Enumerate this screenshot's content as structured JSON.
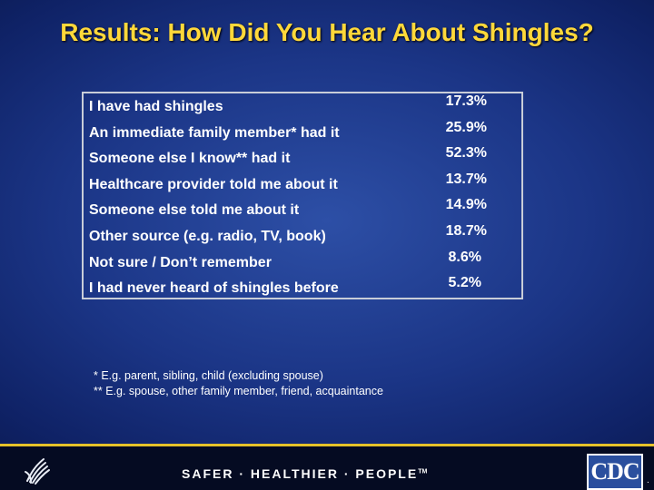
{
  "title": "Results: How Did You Hear About Shingles?",
  "rows": [
    {
      "label": "I have had shingles",
      "value": "17.3%"
    },
    {
      "label": "An immediate family member* had it",
      "value": "25.9%"
    },
    {
      "label": "Someone else I know** had it",
      "value": "52.3%"
    },
    {
      "label": "Healthcare provider told me about it",
      "value": "13.7%"
    },
    {
      "label": "Someone else told me about it",
      "value": "14.9%"
    },
    {
      "label": "Other source (e.g. radio, TV, book)",
      "value": "18.7%"
    },
    {
      "label": "Not sure / Don’t remember",
      "value": "8.6%"
    },
    {
      "label": "I had never heard of shingles before",
      "value": "5.2%"
    }
  ],
  "footnotes": [
    "* E.g. parent, sibling, child (excluding spouse)",
    "** E.g. spouse, other family member, friend, acquaintance"
  ],
  "footer": {
    "slogan": "SAFER · HEALTHIER · PEOPLE",
    "trademark": "TM",
    "logo_text": "CDC",
    "hhs_icon": "hhs-eagle-icon",
    "corner_mark": "."
  },
  "colors": {
    "title": "#ffd83a",
    "background": "#1b3586",
    "accent_line": "#e6c22a",
    "logo_blue": "#2a4f9e"
  }
}
